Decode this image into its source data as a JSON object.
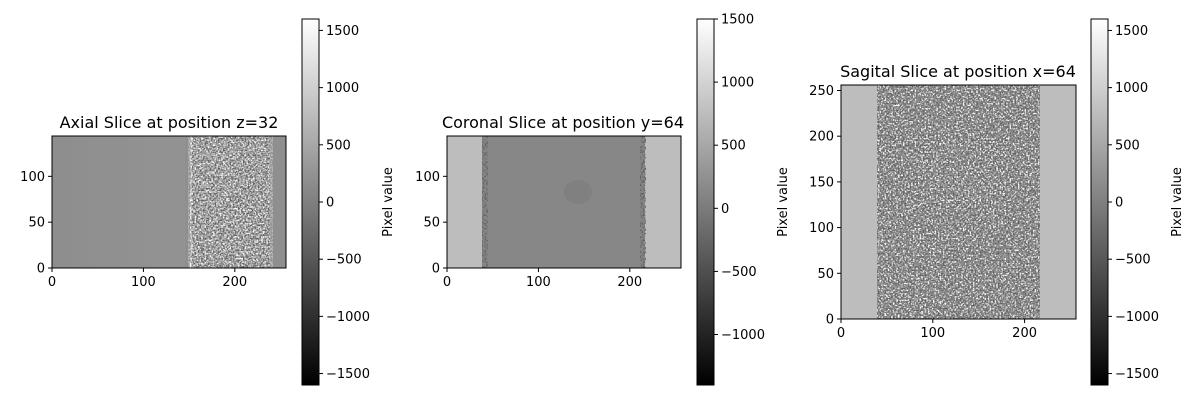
{
  "panels": [
    {
      "title": "Axial Slice at position z=32",
      "xticks": [
        0,
        100,
        200
      ],
      "yticks": [
        0,
        50,
        100
      ],
      "xlim": [
        0,
        256
      ],
      "ylim": [
        0,
        144
      ],
      "colorbar": {
        "label": "Pixel value",
        "ticks": [
          1500,
          1000,
          500,
          0,
          -500,
          -1000,
          -1500
        ],
        "range": [
          -1600,
          1600
        ]
      }
    },
    {
      "title": "Coronal Slice at position y=64",
      "xticks": [
        0,
        100,
        200
      ],
      "yticks": [
        0,
        50,
        100
      ],
      "xlim": [
        0,
        256
      ],
      "ylim": [
        0,
        144
      ],
      "colorbar": {
        "label": "Pixel value",
        "ticks": [
          1500,
          1000,
          500,
          0,
          -500,
          -1000
        ],
        "range": [
          -1400,
          1500
        ]
      }
    },
    {
      "title": "Sagital Slice at position x=64",
      "xticks": [
        0,
        100,
        200
      ],
      "yticks": [
        0,
        50,
        100,
        150,
        200,
        250
      ],
      "xlim": [
        0,
        256
      ],
      "ylim": [
        0,
        256
      ],
      "colorbar": {
        "label": "Pixel value",
        "ticks": [
          1500,
          1000,
          500,
          0,
          -500,
          -1000,
          -1500
        ],
        "range": [
          -1600,
          1600
        ]
      }
    }
  ]
}
